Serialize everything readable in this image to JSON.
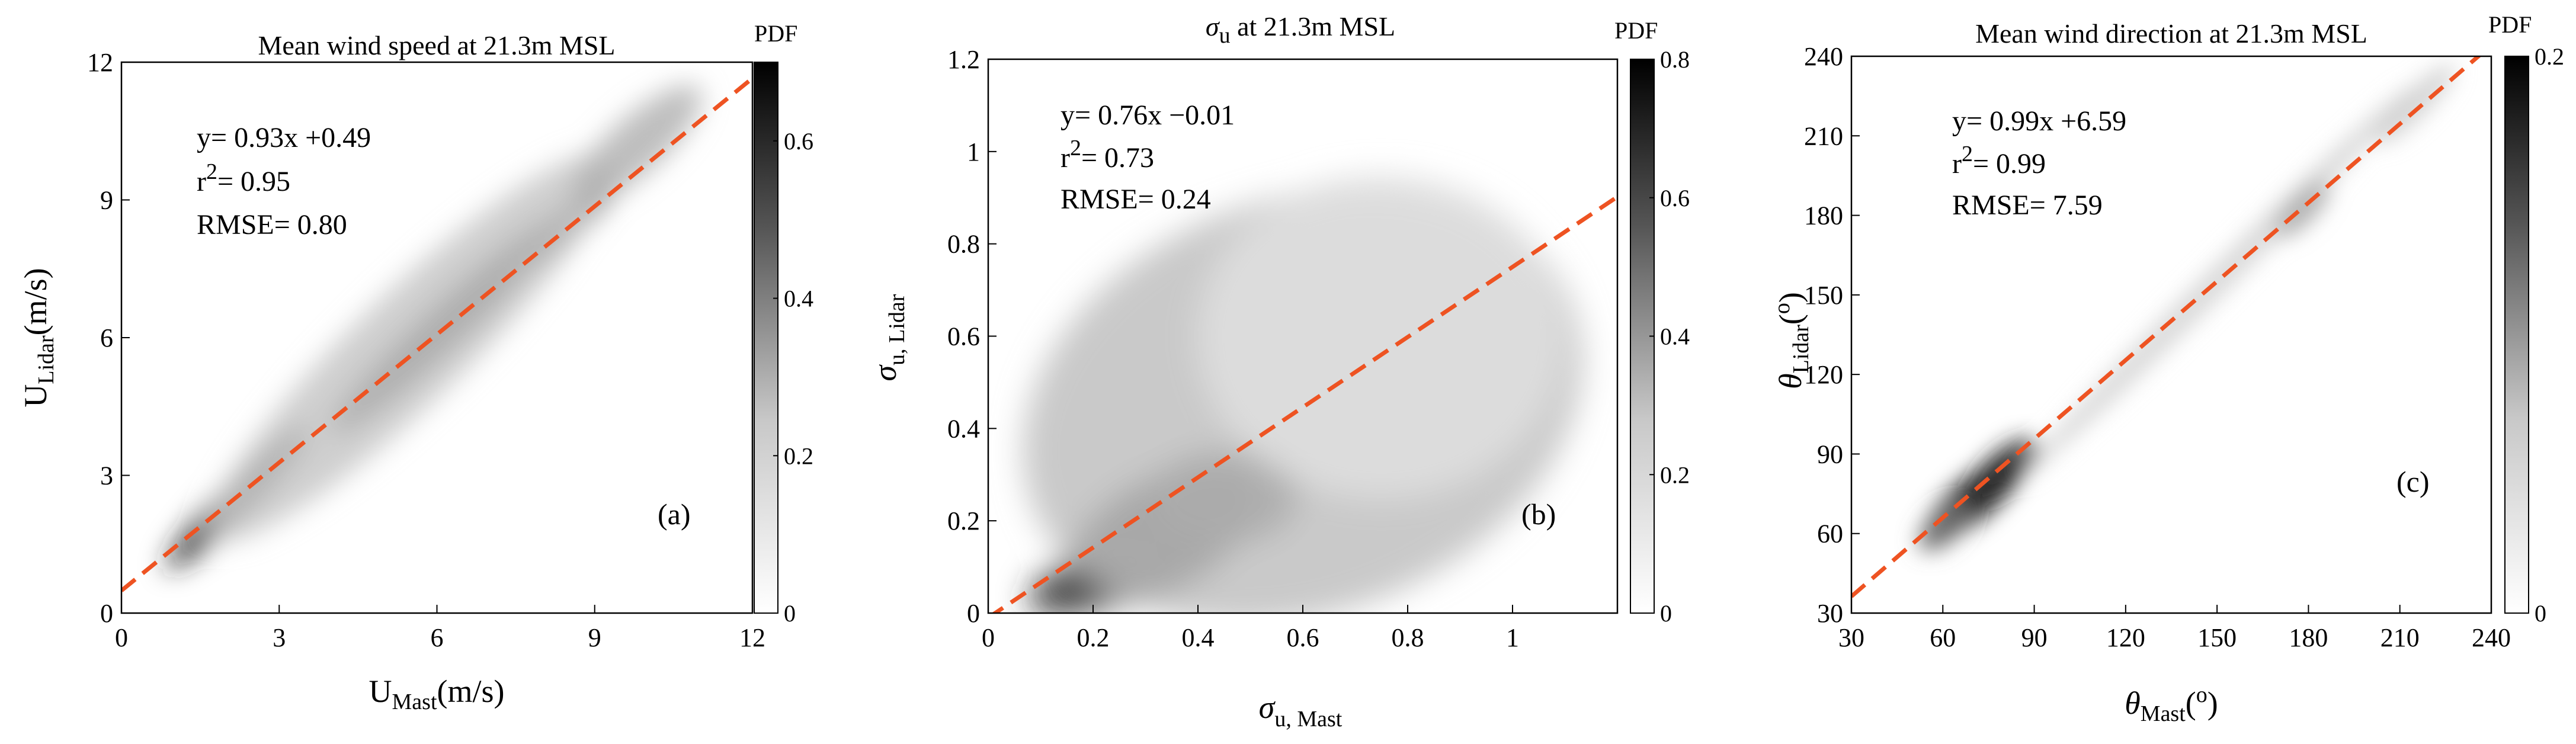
{
  "chart_data": [
    {
      "type": "heatmap",
      "panel": "a",
      "title": "Mean wind speed at 21.3m MSL",
      "xlabel": {
        "main": "U",
        "sub": "Mast",
        "tail": "(m/s)"
      },
      "ylabel": {
        "main": "U",
        "sub": "Lidar",
        "tail": "(m/s)"
      },
      "xlim": [
        0,
        12
      ],
      "ylim": [
        0,
        12
      ],
      "xticks": [
        0,
        3,
        6,
        9,
        12
      ],
      "yticks": [
        0,
        3,
        6,
        9,
        12
      ],
      "fit": {
        "slope": 0.93,
        "intercept": 0.49
      },
      "annotation": {
        "eq": "y= 0.93x +0.49",
        "r2_label": "r",
        "r2_sup": "2",
        "r2_value": "= 0.95",
        "rmse": "RMSE= 0.80"
      },
      "panel_label": "(a)",
      "colorbar": {
        "label": "PDF",
        "min": 0,
        "max": 0.7,
        "ticks": [
          0,
          0.2,
          0.4,
          0.6
        ],
        "tick_labels": [
          "0",
          "0.2",
          "0.4",
          "0.6"
        ]
      },
      "density_blobs": [
        {
          "x": 6.2,
          "y": 6.3,
          "sx": 3.0,
          "sy": 0.45,
          "angle": 43,
          "w": 1.0
        },
        {
          "x": 2.2,
          "y": 2.5,
          "sx": 1.9,
          "sy": 0.35,
          "angle": 45,
          "w": 0.85
        },
        {
          "x": 8.4,
          "y": 8.4,
          "sx": 1.4,
          "sy": 0.35,
          "angle": 42,
          "w": 0.7
        },
        {
          "x": 5.5,
          "y": 5.8,
          "sx": 5.2,
          "sy": 1.2,
          "angle": 44,
          "w": 0.22
        },
        {
          "x": 9.8,
          "y": 10.2,
          "sx": 1.6,
          "sy": 0.6,
          "angle": 42,
          "w": 0.3
        }
      ]
    },
    {
      "type": "heatmap",
      "panel": "b",
      "title": {
        "sigma": "σ",
        "sub": "u",
        "tail": " at 21.3m MSL"
      },
      "xlabel": {
        "main": "σ",
        "sub": "u, Mast",
        "tail": ""
      },
      "ylabel": {
        "main": "σ",
        "sub": "u, Lidar",
        "tail": ""
      },
      "xlim": [
        0,
        1.2
      ],
      "ylim": [
        0,
        1.2
      ],
      "xticks": [
        0,
        0.2,
        0.4,
        0.6,
        0.8,
        1
      ],
      "xtick_labels": [
        "0",
        "0.2",
        "0.4",
        "0.6",
        "0.8",
        "1"
      ],
      "yticks": [
        0,
        0.2,
        0.4,
        0.6,
        0.8,
        1,
        1.2
      ],
      "ytick_labels": [
        "0",
        "0.2",
        "0.4",
        "0.6",
        "0.8",
        "1",
        "1.2"
      ],
      "fit": {
        "slope": 0.76,
        "intercept": -0.01
      },
      "annotation": {
        "eq": "y= 0.76x −0.01",
        "r2_label": "r",
        "r2_sup": "2",
        "r2_value": "= 0.73",
        "rmse": "RMSE= 0.24"
      },
      "panel_label": "(b)",
      "colorbar": {
        "label": "PDF",
        "min": 0,
        "max": 0.8,
        "ticks": [
          0,
          0.2,
          0.4,
          0.6,
          0.8
        ],
        "tick_labels": [
          "0",
          "0.2",
          "0.4",
          "0.6",
          "0.8"
        ]
      },
      "density_blobs": [
        {
          "x": 0.33,
          "y": 0.17,
          "sx": 0.2,
          "sy": 0.12,
          "angle": 30,
          "w": 1.0
        },
        {
          "x": 0.2,
          "y": 0.07,
          "sx": 0.13,
          "sy": 0.06,
          "angle": 20,
          "w": 0.8
        },
        {
          "x": 0.45,
          "y": 0.25,
          "sx": 0.14,
          "sy": 0.1,
          "angle": 0,
          "w": 0.75
        },
        {
          "x": 0.6,
          "y": 0.45,
          "sx": 0.55,
          "sy": 0.45,
          "angle": 20,
          "w": 0.25
        },
        {
          "x": 0.75,
          "y": 0.6,
          "sx": 0.35,
          "sy": 0.35,
          "angle": 0,
          "w": 0.12
        }
      ]
    },
    {
      "type": "heatmap",
      "panel": "c",
      "title": "Mean wind direction at 21.3m MSL",
      "xlabel": {
        "main": "θ",
        "sub": "Mast",
        "tail": "(",
        "sup": "o",
        "close": ")"
      },
      "ylabel": {
        "main": "θ",
        "sub": "Lidar",
        "tail": "(",
        "sup": "o",
        "close": ")"
      },
      "xlim": [
        30,
        240
      ],
      "ylim": [
        30,
        240
      ],
      "xticks": [
        30,
        60,
        90,
        120,
        150,
        180,
        210,
        240
      ],
      "yticks": [
        30,
        60,
        90,
        120,
        150,
        180,
        210,
        240
      ],
      "fit": {
        "slope": 0.99,
        "intercept": 6.59
      },
      "annotation": {
        "eq": "y= 0.99x +6.59",
        "r2_label": "r",
        "r2_sup": "2",
        "r2_value": "= 0.99",
        "rmse": "RMSE= 7.59"
      },
      "panel_label": "(c)",
      "colorbar": {
        "label": "PDF",
        "min": 0,
        "max": 0.2,
        "ticks": [
          0,
          0.2
        ],
        "tick_labels": [
          "0",
          "0.2"
        ]
      },
      "density_blobs": [
        {
          "x": 70,
          "y": 73,
          "sx": 20,
          "sy": 8,
          "angle": 40,
          "w": 1.0
        },
        {
          "x": 80,
          "y": 84,
          "sx": 14,
          "sy": 7,
          "angle": 42,
          "w": 0.85
        },
        {
          "x": 60,
          "y": 62,
          "sx": 10,
          "sy": 6,
          "angle": 42,
          "w": 0.55
        },
        {
          "x": 150,
          "y": 155,
          "sx": 90,
          "sy": 5,
          "angle": 45,
          "w": 0.18
        },
        {
          "x": 178,
          "y": 182,
          "sx": 12,
          "sy": 5,
          "angle": 45,
          "w": 0.35
        },
        {
          "x": 215,
          "y": 222,
          "sx": 18,
          "sy": 5,
          "angle": 45,
          "w": 0.2
        }
      ]
    }
  ]
}
